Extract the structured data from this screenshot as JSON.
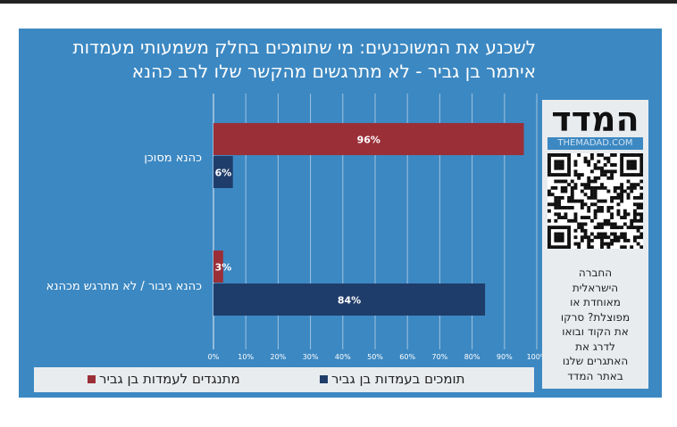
{
  "chart_data": {
    "type": "bar",
    "orientation": "horizontal",
    "title": "לשכנע את המשוכנעים: מי שתומכים בחלק משמעותי מעמדות איתמר בן גביר - לא מתרגשים מהקשר שלו לרב כהנא",
    "categories": [
      "כהנא מסוכן",
      "כהנא גיבור / לא מתרגש מכהנא"
    ],
    "series": [
      {
        "name": "מתנגדים לעמדות בן גביר",
        "color": "#9b2f38",
        "values": [
          96,
          3
        ]
      },
      {
        "name": "תומכים בעמדות בן גביר",
        "color": "#1f3d6b",
        "values": [
          6,
          84
        ]
      }
    ],
    "data_labels": [
      [
        "96%",
        "3%"
      ],
      [
        "6%",
        "84%"
      ]
    ],
    "xlim": [
      0,
      100
    ],
    "x_ticks": [
      "0%",
      "10%",
      "20%",
      "30%",
      "40%",
      "50%",
      "60%",
      "70%",
      "80%",
      "90%",
      "100%"
    ],
    "grid": true,
    "legend_position": "bottom"
  },
  "colors": {
    "background": "#3c88c2",
    "panel": "#e9ecef"
  },
  "sidebar": {
    "logo": "המדד",
    "site": "THEMADAD.COM",
    "qr_icon": "qr-code-icon",
    "promo": [
      "החברה",
      "הישראלית",
      "מאוחדת או",
      "מפוצלת? סרקו",
      "את הקוד ובואו",
      "לדרג את",
      "האתגרים שלנו",
      "באתר המדד"
    ]
  }
}
